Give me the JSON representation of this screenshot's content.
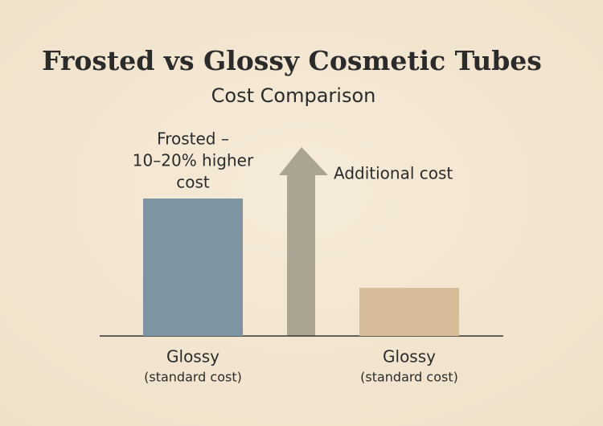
{
  "chart_data": {
    "type": "bar",
    "title": "Frosted vs Glossy Cosmetic Tubes",
    "subtitle": "Cost Comparison",
    "categories": [
      "Glossy",
      "Glossy"
    ],
    "category_sublabels": [
      "(standard cost)",
      "(standard cost)"
    ],
    "values": [
      100,
      35
    ],
    "colors": [
      "#7d95a3",
      "#d6bc98"
    ],
    "ylim": [
      0,
      100
    ],
    "bar_label_lines": [
      "Frosted –",
      "10–20% higher",
      "cost"
    ],
    "arrow_label": "Additional cost"
  }
}
